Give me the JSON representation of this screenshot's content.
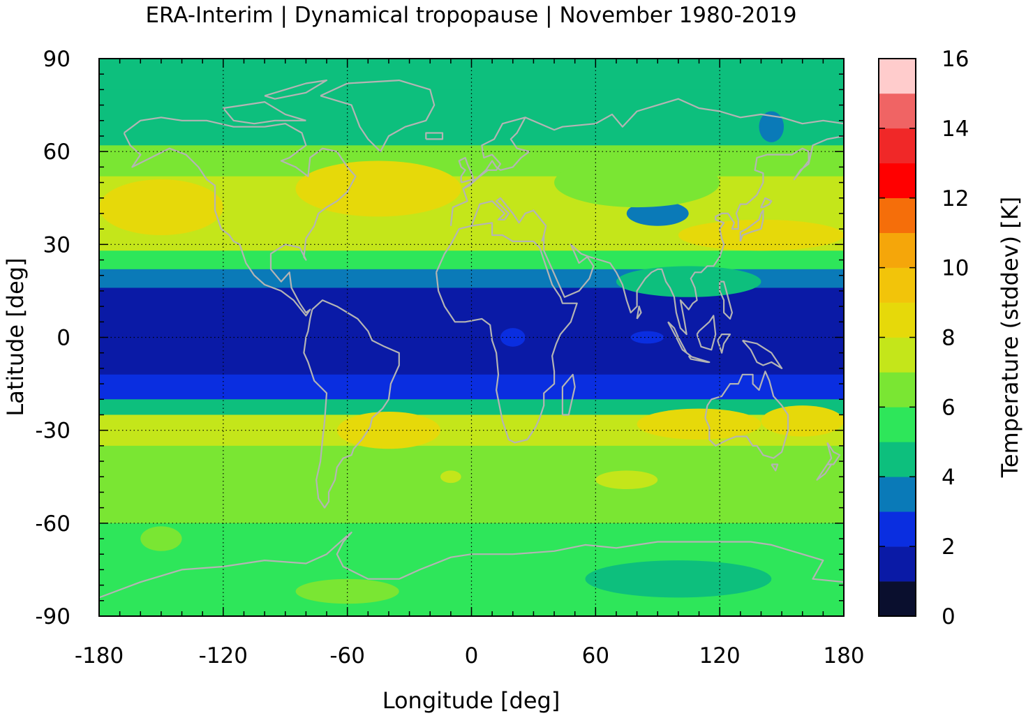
{
  "title": "ERA-Interim | Dynamical tropopause | November 1980-2019",
  "xaxis": {
    "label": "Longitude [deg]",
    "range": [
      -180,
      180
    ],
    "ticks": [
      -180,
      -120,
      -60,
      0,
      60,
      120,
      180
    ],
    "tick_labels": [
      "-180",
      "-120",
      "-60",
      "0",
      "60",
      "120",
      "180"
    ]
  },
  "yaxis": {
    "label": "Latitude [deg]",
    "range": [
      -90,
      90
    ],
    "ticks": [
      90,
      60,
      30,
      0,
      -30,
      -60,
      -90
    ],
    "tick_labels": [
      "90",
      "60",
      "30",
      "0",
      "-30",
      "-60",
      "-90"
    ]
  },
  "colorbar": {
    "label": "Temperature (stddev) [K]",
    "range": [
      0,
      16
    ],
    "tick_labels": [
      "16",
      "14",
      "12",
      "10",
      "8",
      "6",
      "4",
      "2",
      "0"
    ],
    "levels": [
      {
        "min": 0,
        "max": 1,
        "color": "#0a0f2e"
      },
      {
        "min": 1,
        "max": 2,
        "color": "#0a1aa6"
      },
      {
        "min": 2,
        "max": 3,
        "color": "#0a2ee0"
      },
      {
        "min": 3,
        "max": 4,
        "color": "#0a7ab8"
      },
      {
        "min": 4,
        "max": 5,
        "color": "#0dbf7d"
      },
      {
        "min": 5,
        "max": 6,
        "color": "#2ee65a"
      },
      {
        "min": 6,
        "max": 7,
        "color": "#7ae633"
      },
      {
        "min": 7,
        "max": 8,
        "color": "#c4e61a"
      },
      {
        "min": 8,
        "max": 9,
        "color": "#e6d90a"
      },
      {
        "min": 9,
        "max": 10,
        "color": "#f2c40a"
      },
      {
        "min": 10,
        "max": 11,
        "color": "#f5a60a"
      },
      {
        "min": 11,
        "max": 12,
        "color": "#f56e0a"
      },
      {
        "min": 12,
        "max": 13,
        "color": "#ff0000"
      },
      {
        "min": 13,
        "max": 14,
        "color": "#f02828"
      },
      {
        "min": 14,
        "max": 15,
        "color": "#f06464"
      },
      {
        "min": 15,
        "max": 16,
        "color": "#ffcccc"
      }
    ]
  },
  "grid": true,
  "coastline_color": "#b4b4b4",
  "field_bands": [
    {
      "lat_min": 80,
      "lat_max": 90,
      "value": 4.5
    },
    {
      "lat_min": 62,
      "lat_max": 80,
      "value": 4.6
    },
    {
      "lat_min": 52,
      "lat_max": 62,
      "value": 6.2
    },
    {
      "lat_min": 38,
      "lat_max": 52,
      "value": 7.4
    },
    {
      "lat_min": 28,
      "lat_max": 38,
      "value": 7.8
    },
    {
      "lat_min": 22,
      "lat_max": 28,
      "value": 5.2
    },
    {
      "lat_min": 16,
      "lat_max": 22,
      "value": 3.2
    },
    {
      "lat_min": -12,
      "lat_max": 16,
      "value": 1.5
    },
    {
      "lat_min": -20,
      "lat_max": -12,
      "value": 2.3
    },
    {
      "lat_min": -25,
      "lat_max": -20,
      "value": 4.3
    },
    {
      "lat_min": -35,
      "lat_max": -25,
      "value": 7.5
    },
    {
      "lat_min": -45,
      "lat_max": -35,
      "value": 6.8
    },
    {
      "lat_min": -60,
      "lat_max": -45,
      "value": 6.3
    },
    {
      "lat_min": -78,
      "lat_max": -60,
      "value": 5.6
    },
    {
      "lat_min": -90,
      "lat_max": -78,
      "value": 5.5
    }
  ],
  "field_blobs": [
    {
      "lon": -150,
      "lat": 42,
      "rlon": 30,
      "rlat": 9,
      "value": 8.5
    },
    {
      "lon": -45,
      "lat": 48,
      "rlon": 40,
      "rlat": 9,
      "value": 8.4
    },
    {
      "lon": 140,
      "lat": 33,
      "rlon": 40,
      "rlat": 5,
      "value": 8.3
    },
    {
      "lon": 105,
      "lat": 18,
      "rlon": 35,
      "rlat": 5,
      "value": 4.8
    },
    {
      "lon": 90,
      "lat": 40,
      "rlon": 15,
      "rlat": 4,
      "value": 3.8
    },
    {
      "lon": 145,
      "lat": 68,
      "rlon": 6,
      "rlat": 5,
      "value": 3.8
    },
    {
      "lon": 80,
      "lat": 50,
      "rlon": 40,
      "rlat": 8,
      "value": 6.4
    },
    {
      "lon": 20,
      "lat": 0,
      "rlon": 6,
      "rlat": 3,
      "value": 2.3
    },
    {
      "lon": 85,
      "lat": 0,
      "rlon": 8,
      "rlat": 2,
      "value": 2.3
    },
    {
      "lon": -40,
      "lat": -30,
      "rlon": 25,
      "rlat": 6,
      "value": 8.4
    },
    {
      "lon": 110,
      "lat": -28,
      "rlon": 30,
      "rlat": 5,
      "value": 8.3
    },
    {
      "lon": 160,
      "lat": -27,
      "rlon": 20,
      "rlat": 5,
      "value": 8.4
    },
    {
      "lon": 75,
      "lat": -46,
      "rlon": 15,
      "rlat": 3,
      "value": 7.6
    },
    {
      "lon": -10,
      "lat": -45,
      "rlon": 5,
      "rlat": 2,
      "value": 7.6
    },
    {
      "lon": -150,
      "lat": -65,
      "rlon": 10,
      "rlat": 4,
      "value": 6.2
    },
    {
      "lon": 100,
      "lat": -78,
      "rlon": 45,
      "rlat": 6,
      "value": 4.6
    },
    {
      "lon": -60,
      "lat": -82,
      "rlon": 25,
      "rlat": 4,
      "value": 6.2
    }
  ]
}
